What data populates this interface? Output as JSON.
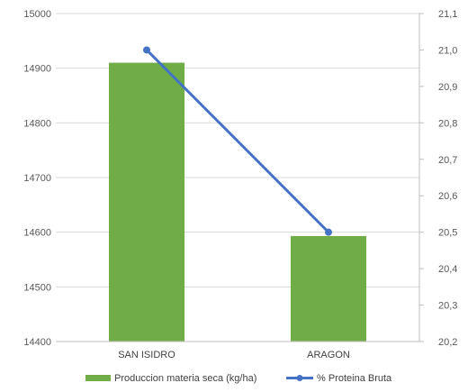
{
  "chart_data": {
    "type": "bar",
    "title": "",
    "categories": [
      "SAN ISIDRO",
      "ARAGON"
    ],
    "series": [
      {
        "name": "Produccion materia seca (kg/ha)",
        "type": "bar",
        "axis": "left",
        "color": "#70AD47",
        "values": [
          14910,
          14593
        ]
      },
      {
        "name": "% Proteina Bruta",
        "type": "line",
        "axis": "right",
        "color": "#4472C4",
        "values": [
          21.0,
          20.5
        ]
      }
    ],
    "y_left": {
      "ylim": [
        14400,
        15000
      ],
      "ticks": [
        "14400",
        "14500",
        "14600",
        "14700",
        "14800",
        "14900",
        "15000"
      ],
      "tick_values": [
        14400,
        14500,
        14600,
        14700,
        14800,
        14900,
        15000
      ]
    },
    "y_right": {
      "ylim": [
        20.2,
        21.1
      ],
      "ticks": [
        "20,2",
        "20,3",
        "20,4",
        "20,5",
        "20,6",
        "20,7",
        "20,8",
        "20,9",
        "21,0",
        "21,1"
      ],
      "tick_values": [
        20.2,
        20.3,
        20.4,
        20.5,
        20.6,
        20.7,
        20.8,
        20.9,
        21.0,
        21.1
      ]
    },
    "grid": "horizontal",
    "legend_position": "bottom"
  }
}
